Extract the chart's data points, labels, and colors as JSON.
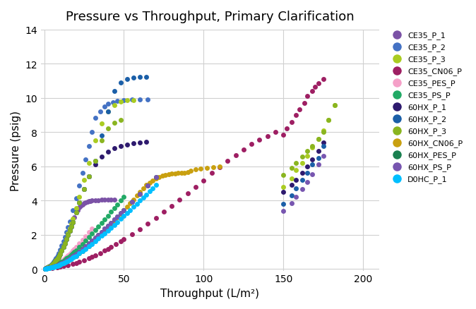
{
  "title": "Pressure vs Throughput, Primary Clarification",
  "xlabel": "Throughput (L/m²)",
  "ylabel": "Pressure (psig)",
  "xlim": [
    -2,
    210
  ],
  "ylim": [
    -0.1,
    14
  ],
  "xticks": [
    0,
    50,
    100,
    150,
    200
  ],
  "yticks": [
    0,
    2,
    4,
    6,
    8,
    10,
    12,
    14
  ],
  "series": {
    "CE35_P_1": {
      "color": "#7B52A6",
      "x": [
        0.5,
        1,
        1.5,
        2,
        2.5,
        3,
        3.5,
        4,
        4.5,
        5,
        5.5,
        6,
        6.5,
        7,
        7.5,
        8,
        8.5,
        9,
        9.5,
        10,
        11,
        12,
        13,
        14,
        15,
        16,
        17,
        18,
        19,
        20,
        21,
        22,
        23,
        24,
        25,
        26,
        27,
        28,
        29,
        30,
        32,
        34,
        36,
        38,
        40,
        42,
        44
      ],
      "y": [
        0.02,
        0.04,
        0.05,
        0.07,
        0.09,
        0.11,
        0.14,
        0.17,
        0.2,
        0.24,
        0.28,
        0.33,
        0.38,
        0.44,
        0.5,
        0.57,
        0.64,
        0.72,
        0.8,
        0.89,
        1.08,
        1.28,
        1.5,
        1.73,
        1.97,
        2.22,
        2.48,
        2.75,
        3.02,
        3.3,
        3.45,
        3.58,
        3.68,
        3.76,
        3.83,
        3.88,
        3.92,
        3.95,
        3.97,
        3.99,
        4.01,
        4.02,
        4.03,
        4.03,
        4.03,
        4.03,
        4.03
      ]
    },
    "CE35_P_2": {
      "color": "#4472C4",
      "x": [
        0.5,
        1,
        1.5,
        2,
        2.5,
        3,
        3.5,
        4,
        4.5,
        5,
        5.5,
        6,
        6.5,
        7,
        7.5,
        8,
        8.5,
        9,
        10,
        11,
        12,
        13,
        14,
        15,
        16,
        18,
        20,
        22,
        24,
        26,
        28,
        30,
        32,
        35,
        38,
        40,
        43,
        46,
        50,
        55,
        60,
        65
      ],
      "y": [
        0.02,
        0.03,
        0.05,
        0.07,
        0.1,
        0.13,
        0.16,
        0.2,
        0.24,
        0.29,
        0.34,
        0.4,
        0.47,
        0.54,
        0.62,
        0.71,
        0.8,
        0.9,
        1.12,
        1.35,
        1.6,
        1.87,
        2.16,
        2.46,
        2.78,
        3.45,
        4.15,
        4.88,
        5.63,
        6.4,
        7.2,
        8.0,
        8.83,
        9.2,
        9.5,
        9.65,
        9.75,
        9.82,
        9.87,
        9.9,
        9.92,
        9.93
      ]
    },
    "CE35_P_3": {
      "color": "#AACC22",
      "x": [
        0.5,
        1,
        1.5,
        2,
        2.5,
        3,
        3.5,
        4,
        4.5,
        5,
        5.5,
        6,
        6.5,
        7,
        7.5,
        8,
        8.5,
        9,
        10,
        11,
        12,
        13,
        14,
        15,
        16,
        17,
        18,
        20,
        22,
        25,
        28,
        32,
        36,
        40,
        44,
        48,
        52,
        56,
        150,
        155,
        158,
        162,
        165,
        168,
        172,
        175,
        178,
        182
      ],
      "y": [
        0.02,
        0.03,
        0.05,
        0.07,
        0.09,
        0.11,
        0.14,
        0.17,
        0.2,
        0.24,
        0.28,
        0.33,
        0.38,
        0.44,
        0.5,
        0.57,
        0.64,
        0.72,
        0.9,
        1.1,
        1.32,
        1.55,
        1.8,
        2.07,
        2.35,
        2.64,
        2.94,
        3.57,
        4.23,
        5.2,
        6.2,
        7.5,
        8.5,
        9.2,
        9.6,
        9.8,
        9.85,
        9.87,
        4.8,
        5.3,
        5.8,
        6.2,
        6.6,
        7.1,
        7.6,
        8.1,
        8.7,
        9.6
      ]
    },
    "CE35_CN06_P": {
      "color": "#9E1F63",
      "x": [
        5,
        8,
        10,
        12,
        15,
        18,
        20,
        22,
        25,
        28,
        30,
        32,
        35,
        38,
        40,
        42,
        45,
        48,
        50,
        55,
        60,
        65,
        70,
        75,
        80,
        85,
        90,
        95,
        100,
        105,
        110,
        115,
        120,
        125,
        130,
        135,
        140,
        145,
        150,
        152,
        155,
        158,
        160,
        163,
        165,
        168,
        170,
        172,
        175
      ],
      "y": [
        0.05,
        0.09,
        0.12,
        0.16,
        0.22,
        0.29,
        0.35,
        0.41,
        0.51,
        0.62,
        0.7,
        0.79,
        0.92,
        1.06,
        1.16,
        1.27,
        1.44,
        1.61,
        1.73,
        2.02,
        2.32,
        2.65,
        2.98,
        3.33,
        3.68,
        4.05,
        4.42,
        4.8,
        5.18,
        5.6,
        5.95,
        6.3,
        6.65,
        7.0,
        7.3,
        7.55,
        7.78,
        8.0,
        7.85,
        8.2,
        8.6,
        9.0,
        9.35,
        9.7,
        10.1,
        10.4,
        10.65,
        10.85,
        11.1
      ]
    },
    "CE35_PES_P": {
      "color": "#F5A0C8",
      "x": [
        0.5,
        1,
        1.5,
        2,
        2.5,
        3,
        3.5,
        4,
        4.5,
        5,
        5.5,
        6,
        6.5,
        7,
        7.5,
        8,
        8.5,
        9,
        9.5,
        10,
        11,
        12,
        13,
        14,
        15,
        16,
        17,
        18,
        19,
        20,
        22,
        24,
        26,
        28,
        30
      ],
      "y": [
        0.01,
        0.02,
        0.03,
        0.04,
        0.05,
        0.06,
        0.07,
        0.09,
        0.1,
        0.12,
        0.14,
        0.16,
        0.18,
        0.21,
        0.23,
        0.26,
        0.29,
        0.32,
        0.35,
        0.39,
        0.46,
        0.54,
        0.62,
        0.7,
        0.79,
        0.88,
        0.97,
        1.07,
        1.17,
        1.27,
        1.48,
        1.7,
        1.92,
        2.14,
        2.37
      ]
    },
    "CE35_PS_P": {
      "color": "#22AA66",
      "x": [
        0.5,
        1,
        1.5,
        2,
        2.5,
        3,
        3.5,
        4,
        4.5,
        5,
        5.5,
        6,
        6.5,
        7,
        7.5,
        8,
        8.5,
        9,
        9.5,
        10,
        11,
        12,
        13,
        14,
        15,
        16,
        17,
        18,
        19,
        20,
        22,
        24,
        26,
        28,
        30,
        32,
        34,
        36,
        38,
        40,
        42,
        44,
        46,
        48,
        50
      ],
      "y": [
        0.01,
        0.02,
        0.03,
        0.04,
        0.05,
        0.06,
        0.07,
        0.08,
        0.1,
        0.11,
        0.13,
        0.15,
        0.17,
        0.19,
        0.21,
        0.24,
        0.26,
        0.29,
        0.32,
        0.35,
        0.41,
        0.47,
        0.54,
        0.61,
        0.68,
        0.76,
        0.84,
        0.92,
        1.01,
        1.1,
        1.28,
        1.47,
        1.66,
        1.86,
        2.06,
        2.27,
        2.48,
        2.69,
        2.9,
        3.12,
        3.34,
        3.56,
        3.78,
        4.0,
        4.22
      ]
    },
    "60HX_P_1": {
      "color": "#2E1A6E",
      "x": [
        0.5,
        1,
        1.5,
        2,
        2.5,
        3,
        3.5,
        4,
        4.5,
        5,
        5.5,
        6,
        6.5,
        7,
        7.5,
        8,
        8.5,
        9,
        9.5,
        10,
        11,
        12,
        13,
        14,
        15,
        16,
        17,
        18,
        20,
        22,
        25,
        28,
        32,
        36,
        40,
        44,
        48,
        52,
        56,
        60,
        64,
        150,
        155,
        158,
        162,
        165,
        168,
        172,
        175
      ],
      "y": [
        0.02,
        0.03,
        0.05,
        0.07,
        0.09,
        0.11,
        0.14,
        0.17,
        0.2,
        0.24,
        0.28,
        0.33,
        0.38,
        0.44,
        0.5,
        0.57,
        0.64,
        0.72,
        0.8,
        0.89,
        1.08,
        1.28,
        1.5,
        1.73,
        1.97,
        2.22,
        2.48,
        2.75,
        3.3,
        3.87,
        4.65,
        5.4,
        6.1,
        6.55,
        6.85,
        7.05,
        7.18,
        7.28,
        7.35,
        7.4,
        7.43,
        4.5,
        4.9,
        5.2,
        5.6,
        6.0,
        6.4,
        6.9,
        7.4
      ]
    },
    "60HX_P_2": {
      "color": "#1B5FA8",
      "x": [
        0.5,
        1,
        1.5,
        2,
        2.5,
        3,
        3.5,
        4,
        4.5,
        5,
        5.5,
        6,
        6.5,
        7,
        7.5,
        8,
        8.5,
        9,
        9.5,
        10,
        11,
        12,
        13,
        14,
        15,
        16,
        17,
        18,
        20,
        22,
        25,
        28,
        32,
        36,
        40,
        44,
        48,
        52,
        56,
        60,
        64,
        150,
        155,
        158,
        162,
        165,
        168,
        172,
        175
      ],
      "y": [
        0.02,
        0.03,
        0.05,
        0.07,
        0.09,
        0.11,
        0.14,
        0.17,
        0.2,
        0.24,
        0.28,
        0.33,
        0.38,
        0.44,
        0.5,
        0.57,
        0.64,
        0.72,
        0.8,
        0.89,
        1.08,
        1.28,
        1.5,
        1.73,
        1.97,
        2.22,
        2.48,
        2.75,
        3.3,
        3.87,
        4.65,
        5.4,
        6.3,
        7.8,
        9.2,
        10.4,
        10.9,
        11.1,
        11.2,
        11.24,
        11.25,
        3.8,
        4.3,
        4.7,
        5.2,
        5.6,
        6.1,
        6.5,
        7.2
      ]
    },
    "60HX_P_3": {
      "color": "#8AB520",
      "x": [
        0.5,
        1,
        1.5,
        2,
        2.5,
        3,
        3.5,
        4,
        4.5,
        5,
        5.5,
        6,
        6.5,
        7,
        7.5,
        8,
        8.5,
        9,
        9.5,
        10,
        11,
        12,
        13,
        14,
        15,
        16,
        17,
        18,
        20,
        22,
        25,
        28,
        32,
        36,
        40,
        44,
        48,
        150,
        155,
        158,
        162,
        165,
        168,
        172,
        175,
        178,
        182
      ],
      "y": [
        0.02,
        0.03,
        0.05,
        0.07,
        0.09,
        0.11,
        0.14,
        0.17,
        0.2,
        0.24,
        0.28,
        0.33,
        0.38,
        0.44,
        0.5,
        0.57,
        0.64,
        0.72,
        0.8,
        0.89,
        1.08,
        1.28,
        1.5,
        1.73,
        1.97,
        2.22,
        2.48,
        2.75,
        3.3,
        3.87,
        4.65,
        5.4,
        6.3,
        7.5,
        8.2,
        8.55,
        8.7,
        5.5,
        5.9,
        6.2,
        6.55,
        6.9,
        7.2,
        7.6,
        8.0,
        8.7,
        9.6
      ]
    },
    "60HX_CN06_P": {
      "color": "#C9A010",
      "x": [
        2,
        4,
        6,
        8,
        10,
        12,
        14,
        16,
        18,
        20,
        22,
        24,
        26,
        28,
        30,
        32,
        34,
        36,
        38,
        40,
        42,
        44,
        46,
        48,
        50,
        52,
        54,
        56,
        58,
        60,
        62,
        64,
        66,
        68,
        70,
        72,
        74,
        76,
        78,
        80,
        82,
        84,
        86,
        88,
        90,
        92,
        95,
        98,
        102,
        106,
        110
      ],
      "y": [
        0.04,
        0.09,
        0.14,
        0.2,
        0.27,
        0.35,
        0.44,
        0.54,
        0.65,
        0.77,
        0.9,
        1.04,
        1.19,
        1.34,
        1.51,
        1.68,
        1.86,
        2.04,
        2.23,
        2.42,
        2.62,
        2.82,
        3.02,
        3.22,
        3.43,
        3.64,
        3.85,
        4.06,
        4.28,
        4.49,
        4.71,
        4.92,
        5.05,
        5.17,
        5.28,
        5.38,
        5.45,
        5.5,
        5.54,
        5.57,
        5.59,
        5.61,
        5.62,
        5.63,
        5.65,
        5.76,
        5.82,
        5.87,
        5.92,
        5.96,
        5.99
      ]
    },
    "60HX_PES_P": {
      "color": "#1A8050",
      "x": [
        0.5,
        1,
        1.5,
        2,
        2.5,
        3,
        3.5,
        4,
        4.5,
        5,
        5.5,
        6,
        6.5,
        7,
        7.5,
        8,
        8.5,
        9,
        9.5,
        10,
        11,
        12,
        13,
        14,
        15,
        16,
        17,
        18,
        19,
        20,
        22,
        24,
        26,
        28,
        30,
        32,
        34,
        36,
        38,
        40,
        42,
        44,
        46,
        48,
        50,
        55,
        60,
        65,
        70
      ],
      "y": [
        0.01,
        0.02,
        0.03,
        0.04,
        0.05,
        0.06,
        0.07,
        0.08,
        0.09,
        0.1,
        0.12,
        0.13,
        0.15,
        0.16,
        0.18,
        0.2,
        0.22,
        0.24,
        0.26,
        0.29,
        0.33,
        0.38,
        0.43,
        0.48,
        0.54,
        0.6,
        0.66,
        0.73,
        0.8,
        0.87,
        1.01,
        1.16,
        1.32,
        1.48,
        1.65,
        1.82,
        1.99,
        2.16,
        2.34,
        2.52,
        2.7,
        2.88,
        3.07,
        3.25,
        3.44,
        3.92,
        4.4,
        4.89,
        5.37
      ]
    },
    "60HX_PS_P": {
      "color": "#7856B0",
      "x": [
        0.5,
        1,
        1.5,
        2,
        2.5,
        3,
        3.5,
        4,
        4.5,
        5,
        5.5,
        6,
        6.5,
        7,
        7.5,
        8,
        8.5,
        9,
        9.5,
        10,
        11,
        12,
        13,
        14,
        15,
        16,
        17,
        18,
        19,
        20,
        22,
        24,
        26,
        28,
        30,
        32,
        34,
        36,
        38,
        40,
        42,
        44,
        46,
        48,
        50,
        55,
        60,
        65,
        70,
        150,
        155,
        158,
        162,
        165,
        168,
        172,
        175
      ],
      "y": [
        0.01,
        0.02,
        0.03,
        0.04,
        0.05,
        0.06,
        0.07,
        0.08,
        0.09,
        0.1,
        0.12,
        0.13,
        0.15,
        0.16,
        0.18,
        0.2,
        0.22,
        0.24,
        0.26,
        0.29,
        0.33,
        0.38,
        0.43,
        0.48,
        0.54,
        0.6,
        0.66,
        0.73,
        0.8,
        0.87,
        1.01,
        1.16,
        1.32,
        1.48,
        1.65,
        1.82,
        1.99,
        2.16,
        2.34,
        2.52,
        2.7,
        2.88,
        3.07,
        3.25,
        3.44,
        3.92,
        4.4,
        4.89,
        5.37,
        3.4,
        3.85,
        4.2,
        4.65,
        5.1,
        5.55,
        6.1,
        6.6
      ]
    },
    "D0HC_P_1": {
      "color": "#00BFFF",
      "x": [
        0.5,
        1,
        1.5,
        2,
        2.5,
        3,
        3.5,
        4,
        4.5,
        5,
        5.5,
        6,
        6.5,
        7,
        7.5,
        8,
        8.5,
        9,
        9.5,
        10,
        11,
        12,
        13,
        14,
        15,
        16,
        17,
        18,
        19,
        20,
        22,
        24,
        26,
        28,
        30,
        32,
        34,
        36,
        38,
        40,
        42,
        44,
        46,
        48,
        50,
        52,
        54,
        56,
        58,
        60,
        62,
        64,
        66,
        68,
        70
      ],
      "y": [
        0.01,
        0.02,
        0.02,
        0.03,
        0.04,
        0.05,
        0.06,
        0.07,
        0.08,
        0.09,
        0.1,
        0.11,
        0.13,
        0.14,
        0.16,
        0.17,
        0.19,
        0.21,
        0.23,
        0.25,
        0.29,
        0.33,
        0.38,
        0.43,
        0.48,
        0.53,
        0.59,
        0.65,
        0.71,
        0.77,
        0.9,
        1.03,
        1.17,
        1.31,
        1.46,
        1.61,
        1.77,
        1.93,
        2.09,
        2.25,
        2.42,
        2.58,
        2.75,
        2.92,
        3.09,
        3.27,
        3.45,
        3.62,
        3.8,
        3.99,
        4.17,
        4.35,
        4.54,
        4.72,
        4.91
      ]
    }
  },
  "background_color": "#ffffff",
  "grid_color": "#d0d0d0",
  "marker_size": 5
}
